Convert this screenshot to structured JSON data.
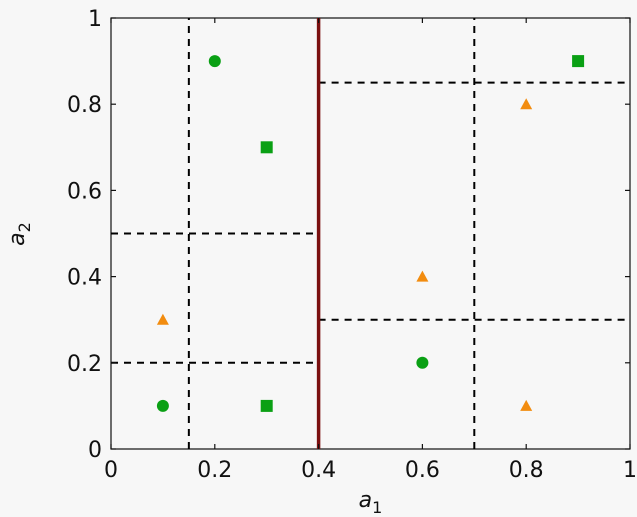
{
  "chart_data": {
    "type": "scatter",
    "xlabel": "a",
    "xlabel_sub": "1",
    "ylabel": "a",
    "ylabel_sub": "2",
    "xlim": [
      0,
      1
    ],
    "ylim": [
      0,
      1
    ],
    "xticks": [
      0,
      0.2,
      0.4,
      0.6,
      0.8,
      1
    ],
    "yticks": [
      0,
      0.2,
      0.4,
      0.6,
      0.8,
      1
    ],
    "xtick_labels": [
      "0",
      "0.2",
      "0.4",
      "0.6",
      "0.8",
      "1"
    ],
    "ytick_labels": [
      "0",
      "0.2",
      "0.4",
      "0.6",
      "0.8",
      "1"
    ],
    "grid": false,
    "colors": {
      "green": "#0aa014",
      "orange": "#f28c0f",
      "split_main": "#7a0f0f",
      "split_dashed": "#000000"
    },
    "series": [
      {
        "marker": "circle",
        "color": "#0aa014",
        "points": [
          [
            0.2,
            0.9
          ],
          [
            0.1,
            0.1
          ],
          [
            0.6,
            0.2
          ]
        ]
      },
      {
        "marker": "square",
        "color": "#0aa014",
        "points": [
          [
            0.3,
            0.7
          ],
          [
            0.3,
            0.1
          ],
          [
            0.9,
            0.9
          ]
        ]
      },
      {
        "marker": "triangle",
        "color": "#f28c0f",
        "points": [
          [
            0.1,
            0.3
          ],
          [
            0.6,
            0.4
          ],
          [
            0.8,
            0.8
          ],
          [
            0.8,
            0.1
          ]
        ]
      }
    ],
    "split_lines": [
      {
        "orientation": "vertical",
        "at": 0.4,
        "from": 0,
        "to": 1,
        "style": "solid",
        "color": "#7a0f0f"
      },
      {
        "orientation": "vertical",
        "at": 0.15,
        "from": 0,
        "to": 1,
        "style": "dashed",
        "color": "#000000"
      },
      {
        "orientation": "horizontal",
        "at": 0.5,
        "from": 0,
        "to": 0.4,
        "style": "dashed",
        "color": "#000000"
      },
      {
        "orientation": "horizontal",
        "at": 0.2,
        "from": 0,
        "to": 0.4,
        "style": "dashed",
        "color": "#000000"
      },
      {
        "orientation": "horizontal",
        "at": 0.85,
        "from": 0.4,
        "to": 1,
        "style": "dashed",
        "color": "#000000"
      },
      {
        "orientation": "horizontal",
        "at": 0.3,
        "from": 0.4,
        "to": 1,
        "style": "dashed",
        "color": "#000000"
      },
      {
        "orientation": "vertical",
        "at": 0.7,
        "from": 0,
        "to": 1,
        "style": "dashed",
        "color": "#000000"
      }
    ]
  }
}
